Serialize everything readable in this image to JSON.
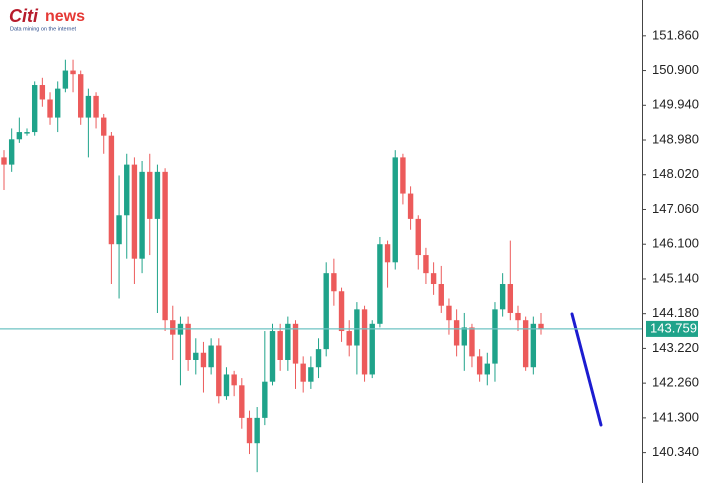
{
  "chart_data": {
    "type": "candlestick",
    "logo": {
      "brand": "Citi",
      "brand_suffix": "news",
      "tagline": "Data mining on the internet"
    },
    "open": [
      148.5,
      148.3,
      149.0,
      149.2,
      149.2,
      150.5,
      150.1,
      149.6,
      150.4,
      150.9,
      150.8,
      149.6,
      150.2,
      149.6,
      149.1,
      146.1,
      146.9,
      148.3,
      145.7,
      148.1,
      146.8,
      148.1,
      144.0,
      143.6,
      143.9,
      142.9,
      143.1,
      142.7,
      143.3,
      141.9,
      142.5,
      142.2,
      141.3,
      140.6,
      141.3,
      142.3,
      143.7,
      142.9,
      143.9,
      142.8,
      142.3,
      142.7,
      143.2,
      145.3,
      144.8,
      143.7,
      143.3,
      144.3,
      142.5,
      143.9,
      146.1,
      145.6,
      148.5,
      147.5,
      146.8,
      145.8,
      145.3,
      145.0,
      144.4,
      144.0,
      143.3,
      143.8,
      143.0,
      142.5,
      142.8,
      144.3,
      145.0,
      144.2,
      144.0,
      142.7,
      143.9
    ],
    "close": [
      148.3,
      149.0,
      149.2,
      149.2,
      150.5,
      150.1,
      149.6,
      150.4,
      150.9,
      150.8,
      149.6,
      150.2,
      149.6,
      149.1,
      146.1,
      146.9,
      148.3,
      145.7,
      148.1,
      146.8,
      148.1,
      144.0,
      143.6,
      143.9,
      142.9,
      143.1,
      142.7,
      143.3,
      141.9,
      142.5,
      142.2,
      141.3,
      140.6,
      141.3,
      142.3,
      143.7,
      142.9,
      143.9,
      142.8,
      142.3,
      142.7,
      143.2,
      145.3,
      144.8,
      143.7,
      143.3,
      144.3,
      142.5,
      143.9,
      146.1,
      145.6,
      148.5,
      147.5,
      146.8,
      145.8,
      145.3,
      145.0,
      144.4,
      144.0,
      143.3,
      143.8,
      143.0,
      142.5,
      142.8,
      144.3,
      145.0,
      144.2,
      144.0,
      142.7,
      143.9,
      143.76
    ],
    "high": [
      148.7,
      149.3,
      149.6,
      149.3,
      150.6,
      150.7,
      150.3,
      150.6,
      151.2,
      151.2,
      150.9,
      150.4,
      150.3,
      149.7,
      149.2,
      148.0,
      148.6,
      148.5,
      148.4,
      148.6,
      148.3,
      148.2,
      144.4,
      144.1,
      144.1,
      143.5,
      143.4,
      143.5,
      143.5,
      142.7,
      142.6,
      142.4,
      141.5,
      141.6,
      143.7,
      143.9,
      143.9,
      144.1,
      144.0,
      143.0,
      143.0,
      143.5,
      145.6,
      145.7,
      144.9,
      144.0,
      144.5,
      144.4,
      144.0,
      146.3,
      146.2,
      148.7,
      148.6,
      147.7,
      146.9,
      146.0,
      145.6,
      145.5,
      144.6,
      144.3,
      144.2,
      143.9,
      143.2,
      143.1,
      144.5,
      145.3,
      146.2,
      144.4,
      144.1,
      144.1,
      144.2
    ],
    "low": [
      147.6,
      148.1,
      148.9,
      149.1,
      149.1,
      149.9,
      149.4,
      149.2,
      150.3,
      150.3,
      149.4,
      148.5,
      149.3,
      148.6,
      145.0,
      144.6,
      145.7,
      145.0,
      145.3,
      145.8,
      144.2,
      143.7,
      142.9,
      142.2,
      142.6,
      142.5,
      142.0,
      142.5,
      141.7,
      141.8,
      141.9,
      141.0,
      140.3,
      139.8,
      141.1,
      142.2,
      142.6,
      142.6,
      142.1,
      142.0,
      142.1,
      142.4,
      143.0,
      144.4,
      143.4,
      143.0,
      142.5,
      142.3,
      142.4,
      143.8,
      144.9,
      145.4,
      147.2,
      146.5,
      145.4,
      145.0,
      144.7,
      144.2,
      143.6,
      143.0,
      142.6,
      142.7,
      142.3,
      142.2,
      142.3,
      144.1,
      144.0,
      143.7,
      142.6,
      142.5,
      143.6
    ],
    "up_color": "#1fa38a",
    "down_color": "#ec5b5b",
    "last_price": {
      "value": 143.759,
      "label": "143.759"
    },
    "ylim": [
      139.5,
      152.85
    ],
    "yticks": [
      {
        "value": 151.86,
        "label": "151.860"
      },
      {
        "value": 150.9,
        "label": "150.900"
      },
      {
        "value": 149.94,
        "label": "149.940"
      },
      {
        "value": 148.98,
        "label": "148.980"
      },
      {
        "value": 148.02,
        "label": "148.020"
      },
      {
        "value": 147.06,
        "label": "147.060"
      },
      {
        "value": 146.1,
        "label": "146.100"
      },
      {
        "value": 145.14,
        "label": "145.140"
      },
      {
        "value": 144.18,
        "label": "144.180"
      },
      {
        "value": 143.22,
        "label": "143.220"
      },
      {
        "value": 142.26,
        "label": "142.260"
      },
      {
        "value": 141.3,
        "label": "141.300"
      },
      {
        "value": 140.34,
        "label": "140.340"
      }
    ]
  }
}
